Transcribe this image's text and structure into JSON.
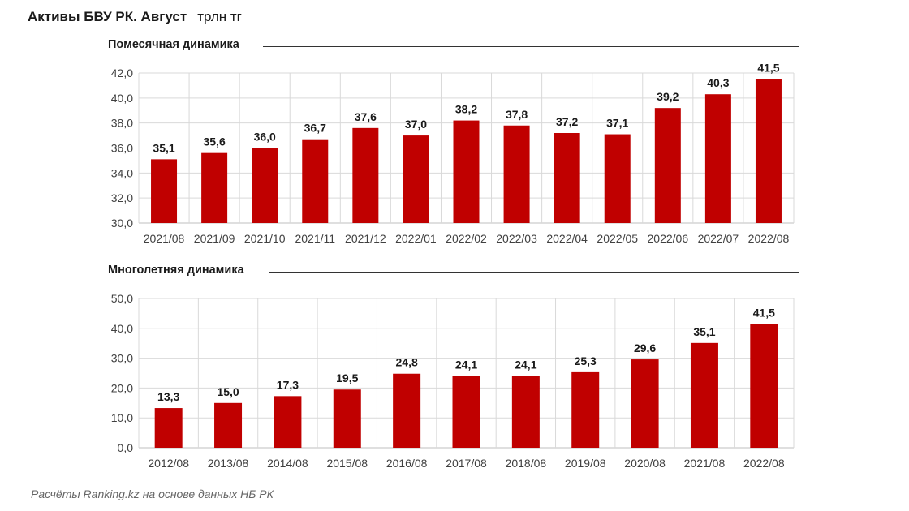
{
  "header": {
    "title": "Активы БВУ РК. Август",
    "unit": "трлн тг"
  },
  "colors": {
    "bar": "#c00000",
    "grid": "#d9d9d9",
    "axis_text": "#404040"
  },
  "chart_data": [
    {
      "type": "bar",
      "title": "Помесячная динамика",
      "categories": [
        "2021/08",
        "2021/09",
        "2021/10",
        "2021/11",
        "2021/12",
        "2022/01",
        "2022/02",
        "2022/03",
        "2022/04",
        "2022/05",
        "2022/06",
        "2022/07",
        "2022/08"
      ],
      "values": [
        35.1,
        35.6,
        36.0,
        36.7,
        37.6,
        37.0,
        38.2,
        37.8,
        37.2,
        37.1,
        39.2,
        40.3,
        41.5
      ],
      "value_labels": [
        "35,1",
        "35,6",
        "36,0",
        "36,7",
        "37,6",
        "37,0",
        "38,2",
        "37,8",
        "37,2",
        "37,1",
        "39,2",
        "40,3",
        "41,5"
      ],
      "ylim": [
        30,
        42
      ],
      "yticks": [
        "30,0",
        "32,0",
        "34,0",
        "36,0",
        "38,0",
        "40,0",
        "42,0"
      ],
      "ytick_values": [
        30,
        32,
        34,
        36,
        38,
        40,
        42
      ],
      "grid": true
    },
    {
      "type": "bar",
      "title": "Многолетняя динамика",
      "categories": [
        "2012/08",
        "2013/08",
        "2014/08",
        "2015/08",
        "2016/08",
        "2017/08",
        "2018/08",
        "2019/08",
        "2020/08",
        "2021/08",
        "2022/08"
      ],
      "values": [
        13.3,
        15.0,
        17.3,
        19.5,
        24.8,
        24.1,
        24.1,
        25.3,
        29.6,
        35.1,
        41.5
      ],
      "value_labels": [
        "13,3",
        "15,0",
        "17,3",
        "19,5",
        "24,8",
        "24,1",
        "24,1",
        "25,3",
        "29,6",
        "35,1",
        "41,5"
      ],
      "ylim": [
        0,
        50
      ],
      "yticks": [
        "0,0",
        "10,0",
        "20,0",
        "30,0",
        "40,0",
        "50,0"
      ],
      "ytick_values": [
        0,
        10,
        20,
        30,
        40,
        50
      ],
      "grid": true
    }
  ],
  "footer": {
    "source": "Расчёты Ranking.kz на основе данных НБ РК"
  }
}
